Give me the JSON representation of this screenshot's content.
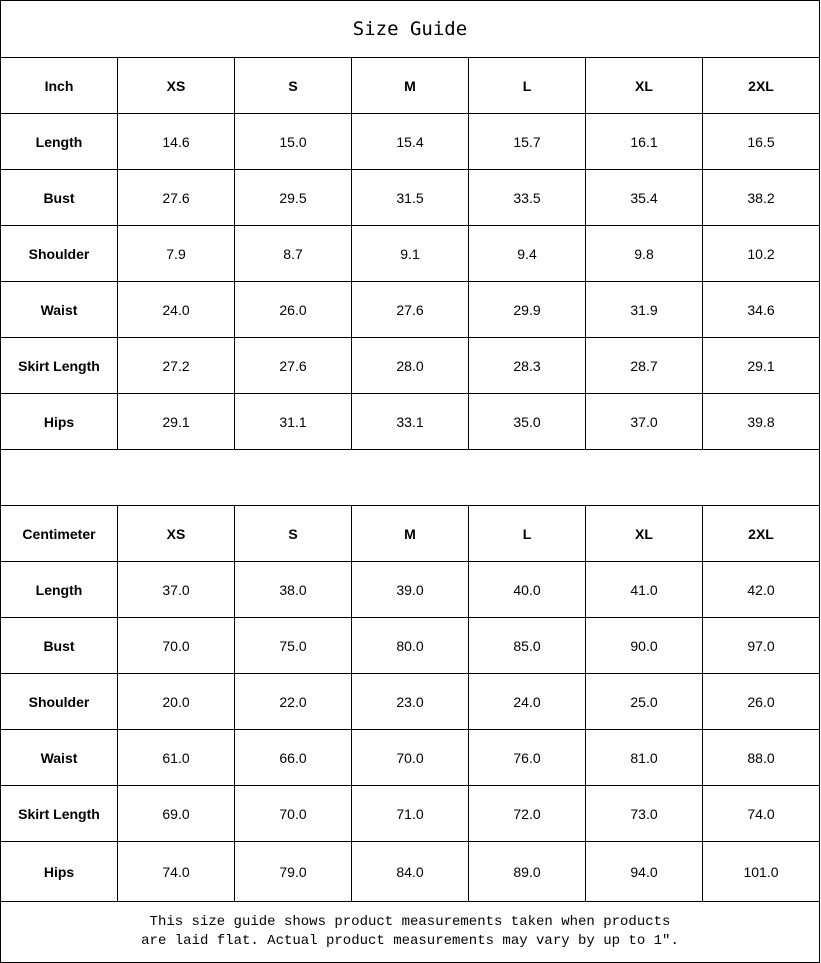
{
  "title": "Size Guide",
  "inch_table": {
    "header": [
      "Inch",
      "XS",
      "S",
      "M",
      "L",
      "XL",
      "2XL"
    ],
    "rows": [
      {
        "label": "Length",
        "values": [
          "14.6",
          "15.0",
          "15.4",
          "15.7",
          "16.1",
          "16.5"
        ]
      },
      {
        "label": "Bust",
        "values": [
          "27.6",
          "29.5",
          "31.5",
          "33.5",
          "35.4",
          "38.2"
        ]
      },
      {
        "label": "Shoulder",
        "values": [
          "7.9",
          "8.7",
          "9.1",
          "9.4",
          "9.8",
          "10.2"
        ]
      },
      {
        "label": "Waist",
        "values": [
          "24.0",
          "26.0",
          "27.6",
          "29.9",
          "31.9",
          "34.6"
        ]
      },
      {
        "label": "Skirt Length",
        "values": [
          "27.2",
          "27.6",
          "28.0",
          "28.3",
          "28.7",
          "29.1"
        ]
      },
      {
        "label": "Hips",
        "values": [
          "29.1",
          "31.1",
          "33.1",
          "35.0",
          "37.0",
          "39.8"
        ]
      }
    ]
  },
  "cm_table": {
    "header": [
      "Centimeter",
      "XS",
      "S",
      "M",
      "L",
      "XL",
      "2XL"
    ],
    "rows": [
      {
        "label": "Length",
        "values": [
          "37.0",
          "38.0",
          "39.0",
          "40.0",
          "41.0",
          "42.0"
        ]
      },
      {
        "label": "Bust",
        "values": [
          "70.0",
          "75.0",
          "80.0",
          "85.0",
          "90.0",
          "97.0"
        ]
      },
      {
        "label": "Shoulder",
        "values": [
          "20.0",
          "22.0",
          "23.0",
          "24.0",
          "25.0",
          "26.0"
        ]
      },
      {
        "label": "Waist",
        "values": [
          "61.0",
          "66.0",
          "70.0",
          "76.0",
          "81.0",
          "88.0"
        ]
      },
      {
        "label": "Skirt Length",
        "values": [
          "69.0",
          "70.0",
          "71.0",
          "72.0",
          "73.0",
          "74.0"
        ]
      },
      {
        "label": "Hips",
        "values": [
          "74.0",
          "79.0",
          "84.0",
          "89.0",
          "94.0",
          "101.0"
        ]
      }
    ]
  },
  "footer": {
    "line1": "This size guide shows product measurements taken when products",
    "line2": "are laid flat. Actual product measurements may vary by up to 1″."
  }
}
